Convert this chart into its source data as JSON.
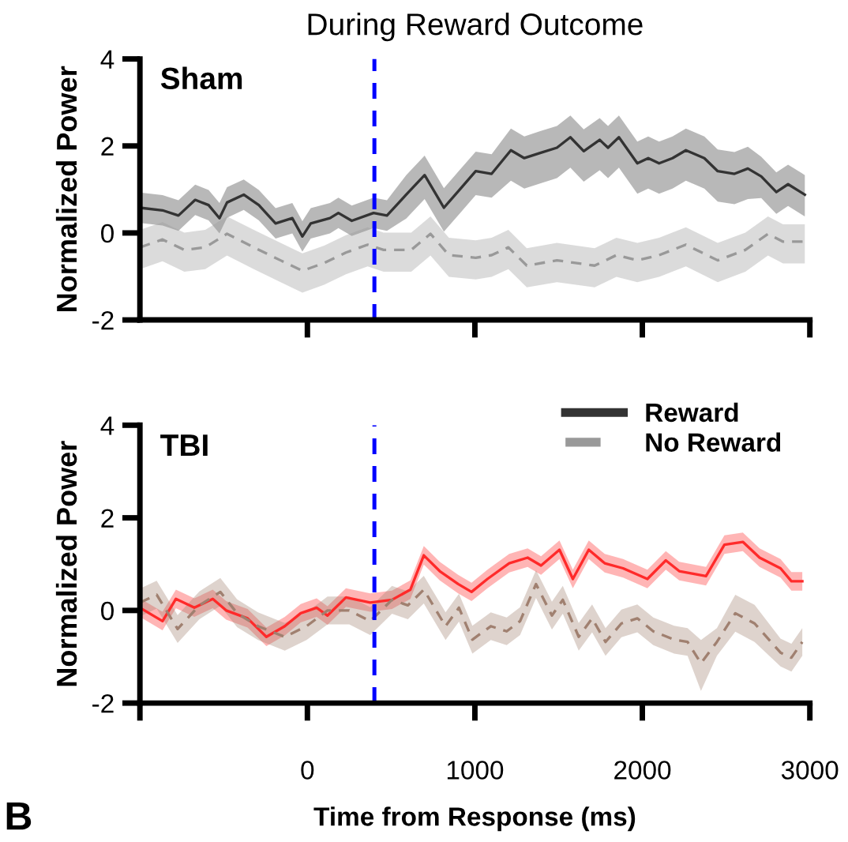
{
  "chart_data": [
    {
      "type": "line",
      "title": "During Reward Outcome",
      "ylabel": "Normalized Power",
      "annotations": [
        "Sham"
      ],
      "xlim": [
        -1000,
        3000
      ],
      "ylim": [
        -2,
        4
      ],
      "yticks": [
        -2,
        0,
        2,
        4
      ],
      "xticks": [
        {
          "value": 0,
          "label": null
        },
        {
          "value": 1000,
          "label": null
        },
        {
          "value": 2000,
          "label": null
        },
        {
          "value": 3000,
          "label": null
        }
      ],
      "tick_labels": "y",
      "grid": false,
      "legend": "bottom right",
      "ref_lines": [
        {
          "axis": "x",
          "value": 400,
          "label": null,
          "color": "#0000ff",
          "line_style": "dashed"
        }
      ],
      "series": [
        {
          "name": "Reward",
          "color": "#333333",
          "line_style": "solid",
          "x": [
            -1000,
            -865,
            -770,
            -670,
            -590,
            -525,
            -480,
            -380,
            -290,
            -190,
            -90,
            -30,
            20,
            135,
            185,
            265,
            395,
            475,
            590,
            700,
            815,
            910,
            1005,
            1100,
            1215,
            1295,
            1390,
            1490,
            1570,
            1650,
            1745,
            1795,
            1860,
            1970,
            2035,
            2100,
            2180,
            2260,
            2370,
            2450,
            2550,
            2630,
            2710,
            2800,
            2870,
            2970
          ],
          "values": [
            0.58,
            0.52,
            0.4,
            0.76,
            0.64,
            0.34,
            0.7,
            0.88,
            0.64,
            0.22,
            0.34,
            -0.08,
            0.22,
            0.34,
            0.46,
            0.28,
            0.46,
            0.4,
            0.88,
            1.33,
            0.58,
            1.0,
            1.42,
            1.36,
            1.9,
            1.72,
            1.84,
            1.96,
            2.2,
            1.88,
            2.14,
            1.96,
            2.2,
            1.6,
            1.72,
            1.6,
            1.72,
            1.9,
            1.72,
            1.42,
            1.36,
            1.48,
            1.3,
            0.94,
            1.12,
            0.88
          ],
          "lower": [
            0.23,
            0.17,
            0.05,
            0.41,
            0.29,
            -0.01,
            0.35,
            0.53,
            0.29,
            -0.13,
            -0.01,
            -0.43,
            -0.13,
            -0.01,
            0.11,
            -0.07,
            0.11,
            0.05,
            0.33,
            0.78,
            0.03,
            0.45,
            0.87,
            0.81,
            1.2,
            1.02,
            1.14,
            1.26,
            1.5,
            1.18,
            1.44,
            1.26,
            1.5,
            0.9,
            1.02,
            0.9,
            1.02,
            1.2,
            1.02,
            0.72,
            0.66,
            0.78,
            0.8,
            0.44,
            0.62,
            0.38
          ],
          "upper": [
            0.93,
            0.87,
            0.75,
            1.11,
            0.99,
            0.69,
            1.05,
            1.23,
            0.99,
            0.57,
            0.69,
            0.27,
            0.57,
            0.69,
            0.81,
            0.63,
            0.81,
            0.75,
            1.33,
            1.78,
            1.03,
            1.45,
            1.87,
            1.81,
            2.4,
            2.22,
            2.34,
            2.46,
            2.7,
            2.38,
            2.64,
            2.46,
            2.7,
            2.1,
            2.22,
            2.1,
            2.22,
            2.4,
            2.22,
            1.92,
            1.86,
            1.98,
            1.75,
            1.39,
            1.57,
            1.33
          ]
        },
        {
          "name": "No Reward",
          "color": "#999999",
          "line_style": "dashed",
          "x": [
            -1000,
            -865,
            -735,
            -610,
            -480,
            -320,
            -160,
            -30,
            100,
            230,
            360,
            455,
            620,
            735,
            845,
            1005,
            1100,
            1200,
            1310,
            1490,
            1715,
            1845,
            1970,
            2100,
            2260,
            2450,
            2615,
            2750,
            2840,
            2970
          ],
          "values": [
            -0.33,
            -0.15,
            -0.39,
            -0.33,
            -0.02,
            -0.33,
            -0.63,
            -0.87,
            -0.69,
            -0.45,
            -0.27,
            -0.39,
            -0.39,
            -0.02,
            -0.51,
            -0.57,
            -0.51,
            -0.33,
            -0.75,
            -0.63,
            -0.75,
            -0.51,
            -0.63,
            -0.51,
            -0.27,
            -0.63,
            -0.39,
            -0.02,
            -0.2,
            -0.2
          ],
          "lower": [
            -0.83,
            -0.65,
            -0.89,
            -0.83,
            -0.52,
            -0.83,
            -1.13,
            -1.37,
            -1.19,
            -0.95,
            -0.77,
            -0.89,
            -0.89,
            -0.52,
            -1.01,
            -1.07,
            -1.01,
            -0.83,
            -1.25,
            -1.13,
            -1.25,
            -1.01,
            -1.13,
            -1.01,
            -0.77,
            -1.13,
            -0.89,
            -0.52,
            -0.7,
            -0.7
          ],
          "upper": [
            0.07,
            0.25,
            0.01,
            0.07,
            0.38,
            0.07,
            -0.23,
            -0.47,
            -0.29,
            -0.05,
            0.13,
            0.01,
            0.01,
            0.38,
            -0.11,
            -0.17,
            -0.11,
            0.07,
            -0.35,
            -0.23,
            -0.35,
            -0.11,
            -0.23,
            -0.11,
            0.13,
            -0.23,
            0.01,
            0.38,
            0.2,
            0.2
          ]
        }
      ]
    },
    {
      "type": "line",
      "xlabel": "Time from Response (ms)",
      "ylabel": "Normalized Power",
      "annotations": [
        "TBI",
        "B"
      ],
      "xlim": [
        -1000,
        3000
      ],
      "ylim": [
        -2,
        4
      ],
      "yticks": [
        -2,
        0,
        2,
        4
      ],
      "xticks": [
        {
          "value": -1000,
          "label": null
        },
        0,
        1000,
        2000,
        3000
      ],
      "grid": false,
      "ref_lines": [
        {
          "axis": "x",
          "value": 400,
          "label": null,
          "color": "#0000ff",
          "line_style": "dashed"
        }
      ],
      "series": [
        {
          "color": "#ff2a2a",
          "line_style": "solid",
          "x": [
            -1000,
            -865,
            -785,
            -675,
            -565,
            -485,
            -357,
            -245,
            -135,
            -40,
            55,
            120,
            230,
            375,
            505,
            615,
            695,
            790,
            900,
            980,
            1075,
            1205,
            1315,
            1395,
            1505,
            1585,
            1680,
            1775,
            1885,
            2030,
            2140,
            2220,
            2380,
            2490,
            2600,
            2700,
            2825,
            2890,
            2955
          ],
          "values": [
            0.06,
            -0.23,
            0.25,
            0.06,
            0.25,
            0,
            -0.17,
            -0.57,
            -0.34,
            -0.06,
            0.06,
            -0.11,
            0.28,
            0.17,
            0.23,
            0.45,
            1.19,
            0.85,
            0.57,
            0.4,
            0.68,
            1.02,
            1.14,
            0.97,
            1.31,
            0.68,
            1.31,
            1.02,
            0.91,
            0.68,
            1.08,
            0.85,
            0.74,
            1.42,
            1.48,
            1.14,
            0.91,
            0.63,
            0.63
          ],
          "lower": [
            -0.14,
            -0.43,
            0.05,
            -0.14,
            0.05,
            -0.2,
            -0.37,
            -0.77,
            -0.54,
            -0.26,
            -0.14,
            -0.31,
            0.08,
            -0.03,
            0.03,
            0.25,
            0.99,
            0.65,
            0.37,
            0.2,
            0.48,
            0.82,
            0.94,
            0.77,
            1.11,
            0.48,
            1.11,
            0.82,
            0.71,
            0.48,
            0.88,
            0.65,
            0.54,
            1.22,
            1.28,
            0.94,
            0.71,
            0.43,
            0.43
          ],
          "upper": [
            0.26,
            -0.03,
            0.45,
            0.26,
            0.45,
            0.2,
            0.03,
            -0.37,
            -0.14,
            0.14,
            0.26,
            0.09,
            0.48,
            0.37,
            0.43,
            0.65,
            1.39,
            1.05,
            0.77,
            0.6,
            0.88,
            1.22,
            1.34,
            1.17,
            1.51,
            0.88,
            1.51,
            1.22,
            1.11,
            0.88,
            1.28,
            1.05,
            0.94,
            1.62,
            1.68,
            1.34,
            1.11,
            0.83,
            0.83
          ]
        },
        {
          "color": "#a08070",
          "line_style": "dashed",
          "x": [
            -1000,
            -900,
            -775,
            -645,
            -520,
            -420,
            -295,
            -135,
            -5,
            120,
            250,
            375,
            505,
            600,
            695,
            825,
            905,
            985,
            1095,
            1190,
            1270,
            1365,
            1460,
            1525,
            1620,
            1700,
            1780,
            1875,
            1970,
            2065,
            2190,
            2270,
            2350,
            2445,
            2555,
            2670,
            2825,
            2890,
            2955
          ],
          "values": [
            0.17,
            0.34,
            -0.4,
            0.11,
            0.4,
            -0.06,
            -0.34,
            -0.57,
            -0.34,
            0,
            0,
            -0.23,
            0.23,
            0.11,
            0.45,
            -0.34,
            0.06,
            -0.63,
            -0.34,
            -0.45,
            -0.23,
            0.57,
            -0.11,
            0.23,
            -0.57,
            -0.17,
            -0.68,
            -0.28,
            -0.17,
            -0.45,
            -0.63,
            -0.68,
            -1.14,
            -0.68,
            -0.06,
            -0.28,
            -0.91,
            -1.02,
            -0.68
          ],
          "lower": [
            -0.13,
            0.04,
            -0.7,
            -0.19,
            0.1,
            -0.36,
            -0.64,
            -0.87,
            -0.64,
            -0.3,
            -0.3,
            -0.53,
            -0.07,
            -0.19,
            0.15,
            -0.64,
            -0.24,
            -0.93,
            -0.64,
            -0.75,
            -0.53,
            0.27,
            -0.41,
            -0.07,
            -0.87,
            -0.47,
            -0.98,
            -0.58,
            -0.47,
            -0.75,
            -0.93,
            -0.98,
            -1.74,
            -0.98,
            -0.46,
            -0.68,
            -1.21,
            -1.32,
            -0.98
          ],
          "upper": [
            0.47,
            0.64,
            -0.1,
            0.41,
            0.7,
            0.24,
            -0.04,
            -0.27,
            -0.04,
            0.3,
            0.3,
            0.07,
            0.53,
            0.41,
            0.75,
            -0.04,
            0.36,
            -0.33,
            -0.04,
            -0.15,
            0.07,
            0.87,
            0.19,
            0.53,
            -0.27,
            0.13,
            -0.38,
            0.02,
            0.13,
            -0.15,
            -0.33,
            -0.38,
            -0.64,
            -0.38,
            0.34,
            0.12,
            -0.61,
            -0.72,
            -0.38
          ]
        }
      ]
    }
  ]
}
